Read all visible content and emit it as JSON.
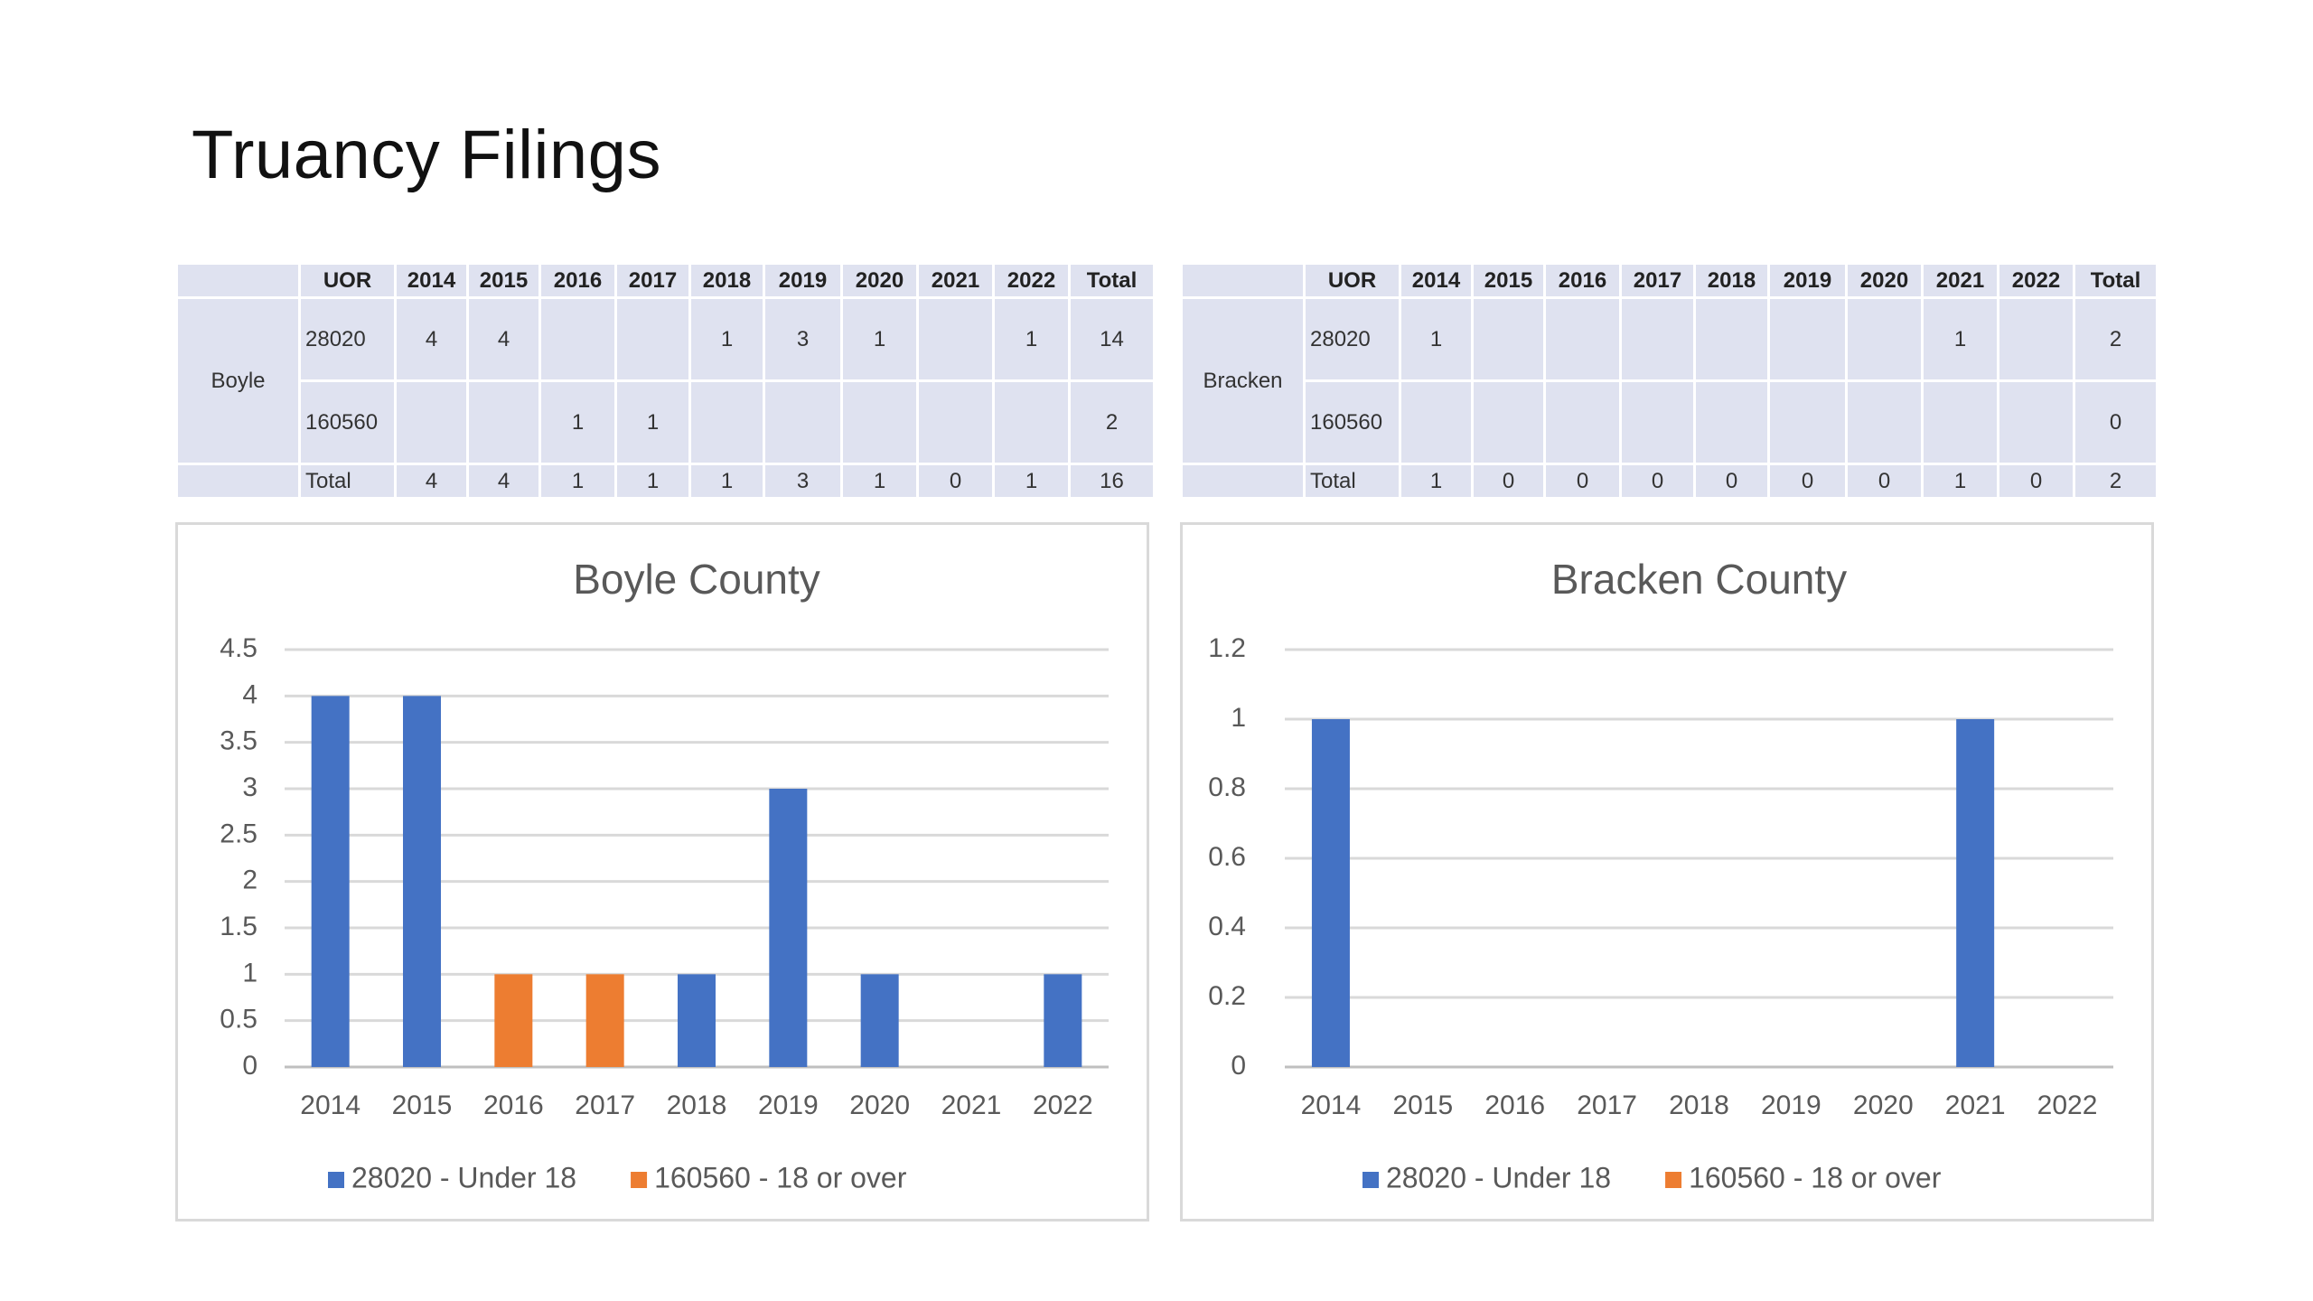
{
  "slide": {
    "title": "Truancy Filings"
  },
  "tables": [
    {
      "county": "Boyle",
      "headers": [
        "UOR",
        "2014",
        "2015",
        "2016",
        "2017",
        "2018",
        "2019",
        "2020",
        "2021",
        "2022",
        "Total"
      ],
      "rows": [
        {
          "uor": "28020",
          "cells": [
            "4",
            "4",
            "",
            "",
            "1",
            "3",
            "1",
            "",
            "1",
            "14"
          ]
        },
        {
          "uor": "160560",
          "cells": [
            "",
            "",
            "1",
            "1",
            "",
            "",
            "",
            "",
            "",
            "2"
          ]
        },
        {
          "uor": "Total",
          "cells": [
            "4",
            "4",
            "1",
            "1",
            "1",
            "3",
            "1",
            "0",
            "1",
            "16"
          ]
        }
      ]
    },
    {
      "county": "Bracken",
      "headers": [
        "UOR",
        "2014",
        "2015",
        "2016",
        "2017",
        "2018",
        "2019",
        "2020",
        "2021",
        "2022",
        "Total"
      ],
      "rows": [
        {
          "uor": "28020",
          "cells": [
            "1",
            "",
            "",
            "",
            "",
            "",
            "",
            "1",
            "",
            "2"
          ]
        },
        {
          "uor": "160560",
          "cells": [
            "",
            "",
            "",
            "",
            "",
            "",
            "",
            "",
            "",
            "0"
          ]
        },
        {
          "uor": "Total",
          "cells": [
            "1",
            "0",
            "0",
            "0",
            "0",
            "0",
            "0",
            "1",
            "0",
            "2"
          ]
        }
      ]
    }
  ],
  "chart_data": [
    {
      "type": "bar",
      "title": "Boyle County",
      "categories": [
        "2014",
        "2015",
        "2016",
        "2017",
        "2018",
        "2019",
        "2020",
        "2021",
        "2022"
      ],
      "series": [
        {
          "name": "28020 - Under 18",
          "color": "#4472c4",
          "values": [
            4,
            4,
            0,
            0,
            1,
            3,
            1,
            0,
            1
          ]
        },
        {
          "name": "160560 - 18 or over",
          "color": "#ed7d31",
          "values": [
            0,
            0,
            1,
            1,
            0,
            0,
            0,
            0,
            0
          ]
        }
      ],
      "stacked": true,
      "ylim": [
        0,
        4.5
      ],
      "yticks": [
        "0",
        "0.5",
        "1",
        "1.5",
        "2",
        "2.5",
        "3",
        "3.5",
        "4",
        "4.5"
      ],
      "grid": true,
      "legend": "bottom",
      "xlabel": "",
      "ylabel": ""
    },
    {
      "type": "bar",
      "title": "Bracken County",
      "categories": [
        "2014",
        "2015",
        "2016",
        "2017",
        "2018",
        "2019",
        "2020",
        "2021",
        "2022"
      ],
      "series": [
        {
          "name": "28020 - Under 18",
          "color": "#4472c4",
          "values": [
            1,
            0,
            0,
            0,
            0,
            0,
            0,
            1,
            0
          ]
        },
        {
          "name": "160560 - 18 or over",
          "color": "#ed7d31",
          "values": [
            0,
            0,
            0,
            0,
            0,
            0,
            0,
            0,
            0
          ]
        }
      ],
      "stacked": true,
      "ylim": [
        0,
        1.2
      ],
      "yticks": [
        "0",
        "0.2",
        "0.4",
        "0.6",
        "0.8",
        "1",
        "1.2"
      ],
      "grid": true,
      "legend": "bottom",
      "xlabel": "",
      "ylabel": ""
    }
  ]
}
